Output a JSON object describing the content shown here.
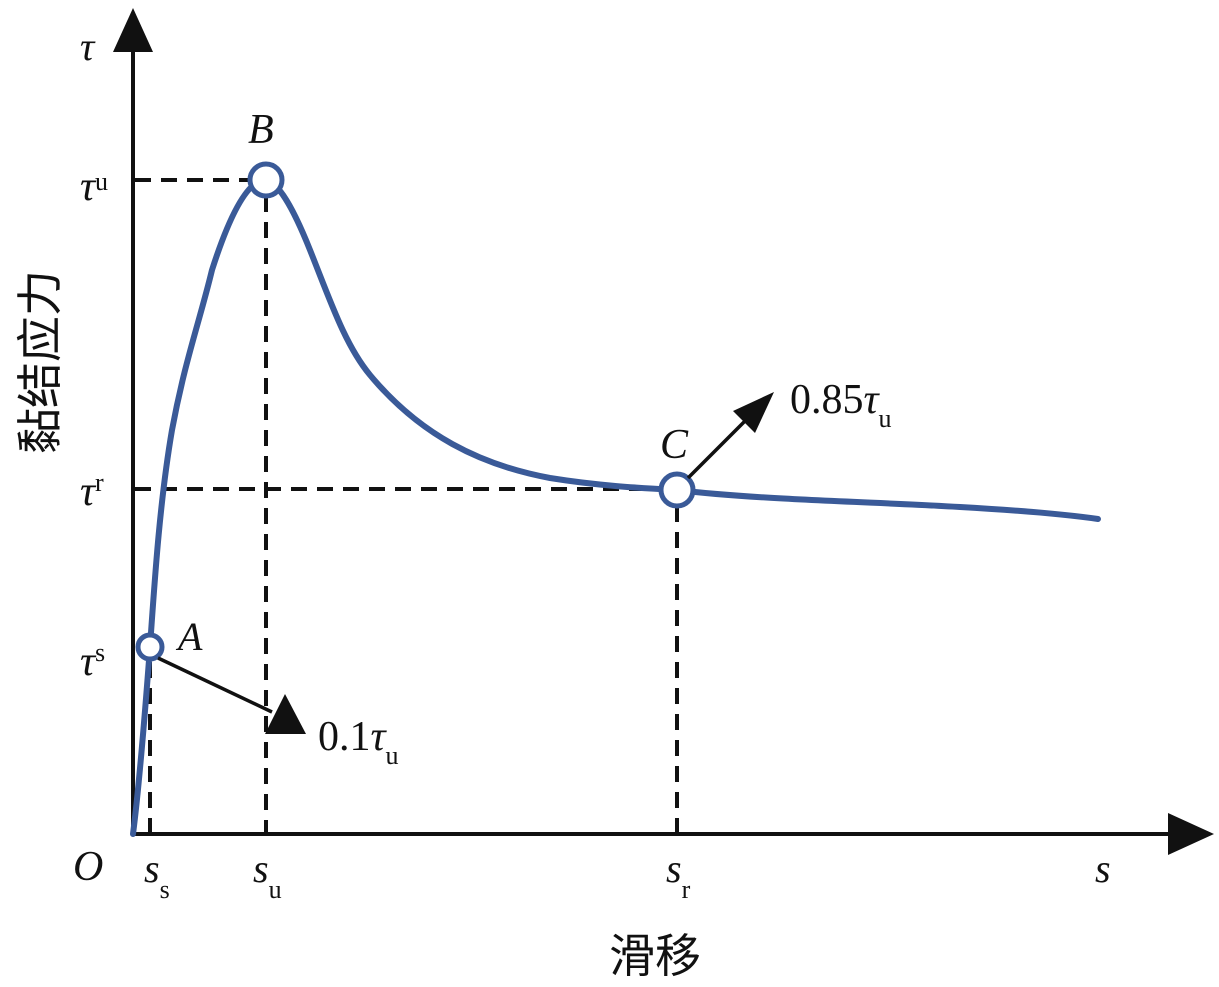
{
  "axes": {
    "y_symbol": "τ",
    "x_symbol": "s",
    "origin": "O",
    "y_title": "黏结应力",
    "x_title": "滑移"
  },
  "y_ticks": [
    {
      "main": "τ",
      "sub": "u"
    },
    {
      "main": "τ",
      "sub": "r"
    },
    {
      "main": "τ",
      "sub": "s"
    }
  ],
  "x_ticks": [
    {
      "main": "s",
      "sub": "s"
    },
    {
      "main": "s",
      "sub": "u"
    },
    {
      "main": "s",
      "sub": "r"
    }
  ],
  "points": {
    "A": "A",
    "B": "B",
    "C": "C"
  },
  "annotations": {
    "a": {
      "prefix": "0.1",
      "main": "τ",
      "sub": "u"
    },
    "c": {
      "prefix": "0.85",
      "main": "τ",
      "sub": "u"
    }
  },
  "colors": {
    "curve": "#3a5a98",
    "axes": "#111111",
    "marker_fill": "#ffffff"
  }
}
